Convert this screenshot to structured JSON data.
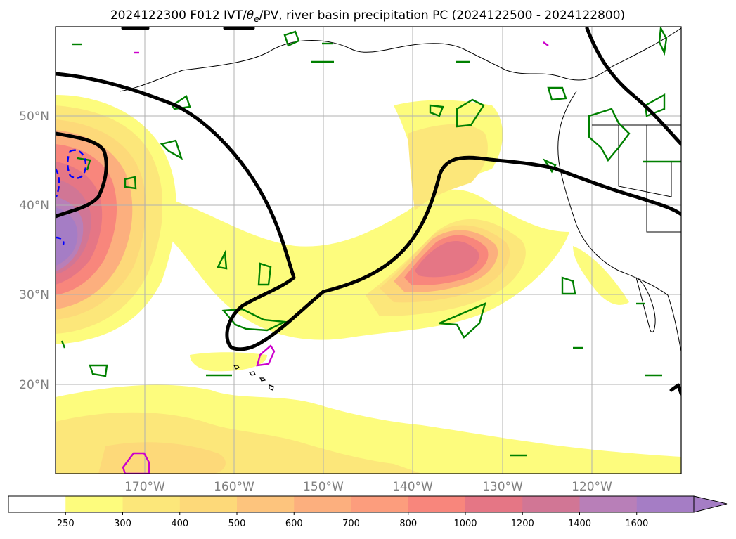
{
  "title": {
    "main": "2024122300 F012 IVT/",
    "theta": "θ",
    "theta_sub": "e",
    "rest": "/PV, river basin precipitation PC (2024122500 - 2024122800)"
  },
  "map": {
    "lat_labels": [
      "50°N",
      "40°N",
      "30°N",
      "20°N"
    ],
    "lat_values": [
      50,
      40,
      30,
      20
    ],
    "lon_labels": [
      "170°W",
      "160°W",
      "150°W",
      "140°W",
      "130°W",
      "120°W"
    ],
    "lon_values": [
      -170,
      -160,
      -150,
      -140,
      -130,
      -120
    ],
    "lon_range": [
      -180,
      -110
    ],
    "lat_range": [
      10,
      60
    ]
  },
  "colorbar": {
    "ticks": [
      "250",
      "300",
      "400",
      "500",
      "600",
      "700",
      "800",
      "1000",
      "1200",
      "1400",
      "1600"
    ],
    "colors": [
      "#ffffff",
      "#fdfc7d",
      "#fce77a",
      "#fdd979",
      "#fdc47d",
      "#fcaf7e",
      "#fc9d7d",
      "#f8867c",
      "#e57685",
      "#d17695",
      "#b87fb8",
      "#a57dc5"
    ],
    "extend": "max"
  },
  "colors": {
    "grid": "#b0b0b0",
    "ivt_outline": "#000000",
    "pv_contour": "#008000",
    "neg_contour": "#0000ff",
    "precip_contour": "#cc00cc"
  }
}
